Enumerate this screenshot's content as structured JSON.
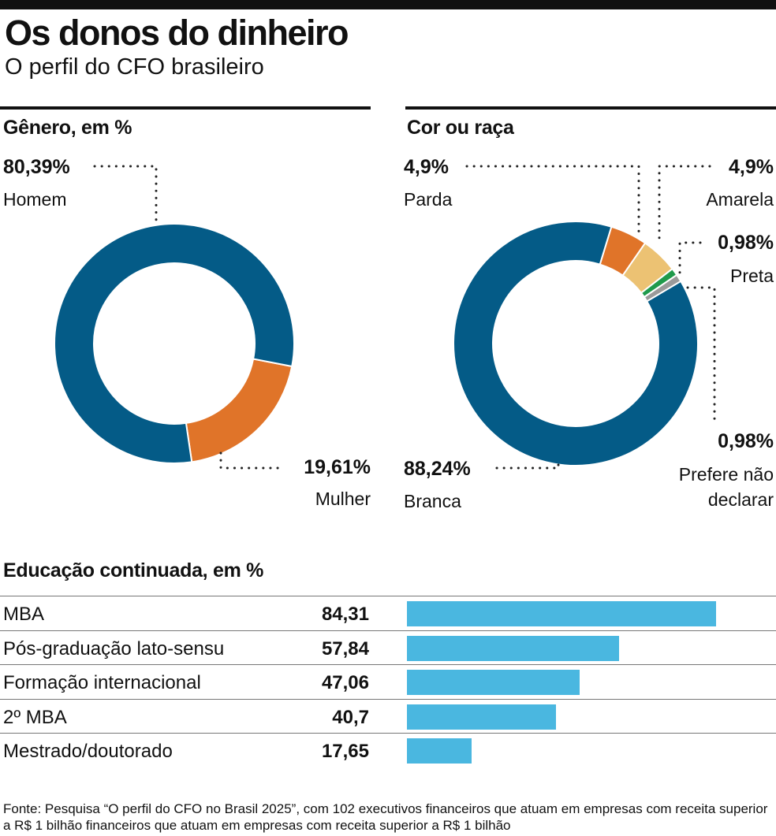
{
  "header": {
    "title": "Os donos do dinheiro",
    "subtitle": "O perfil do CFO brasileiro"
  },
  "chart_data": [
    {
      "type": "pie",
      "title": "Gênero, em %",
      "slices": [
        {
          "label": "Homem",
          "value": 80.39,
          "value_label": "80,39%",
          "color": "#045b87"
        },
        {
          "label": "Mulher",
          "value": 19.61,
          "value_label": "19,61%",
          "color": "#e07429"
        }
      ]
    },
    {
      "type": "pie",
      "title": "Cor ou raça",
      "slices": [
        {
          "label": "Branca",
          "value": 88.24,
          "value_label": "88,24%",
          "color": "#045b87"
        },
        {
          "label": "Parda",
          "value": 4.9,
          "value_label": "4,9%",
          "color": "#e07429"
        },
        {
          "label": "Amarela",
          "value": 4.9,
          "value_label": "4,9%",
          "color": "#ecc273"
        },
        {
          "label": "Preta",
          "value": 0.98,
          "value_label": "0,98%",
          "color": "#1f9a4b"
        },
        {
          "label": "Prefere não declarar",
          "label_lines": [
            "Prefere não",
            "declarar"
          ],
          "value": 0.98,
          "value_label": "0,98%",
          "color": "#9a9a9a"
        }
      ]
    },
    {
      "type": "bar",
      "title": "Educação continuada, em %",
      "categories": [
        "MBA",
        "Pós-graduação lato-sensu",
        "Formação internacional",
        "2º MBA",
        "Mestrado/doutorado"
      ],
      "values": [
        84.31,
        57.84,
        47.06,
        40.7,
        17.65
      ],
      "value_labels": [
        "84,31",
        "57,84",
        "47,06",
        "40,7",
        "17,65"
      ],
      "xlim": [
        0,
        100
      ],
      "color": "#4ab7e0"
    }
  ],
  "source": "Fonte: Pesquisa “O perfil do CFO no Brasil 2025”, com 102 executivos financeiros que atuam em empresas com receita superior a R$ 1 bilhão financeiros que atuam em empresas com receita superior a R$ 1 bilhão"
}
